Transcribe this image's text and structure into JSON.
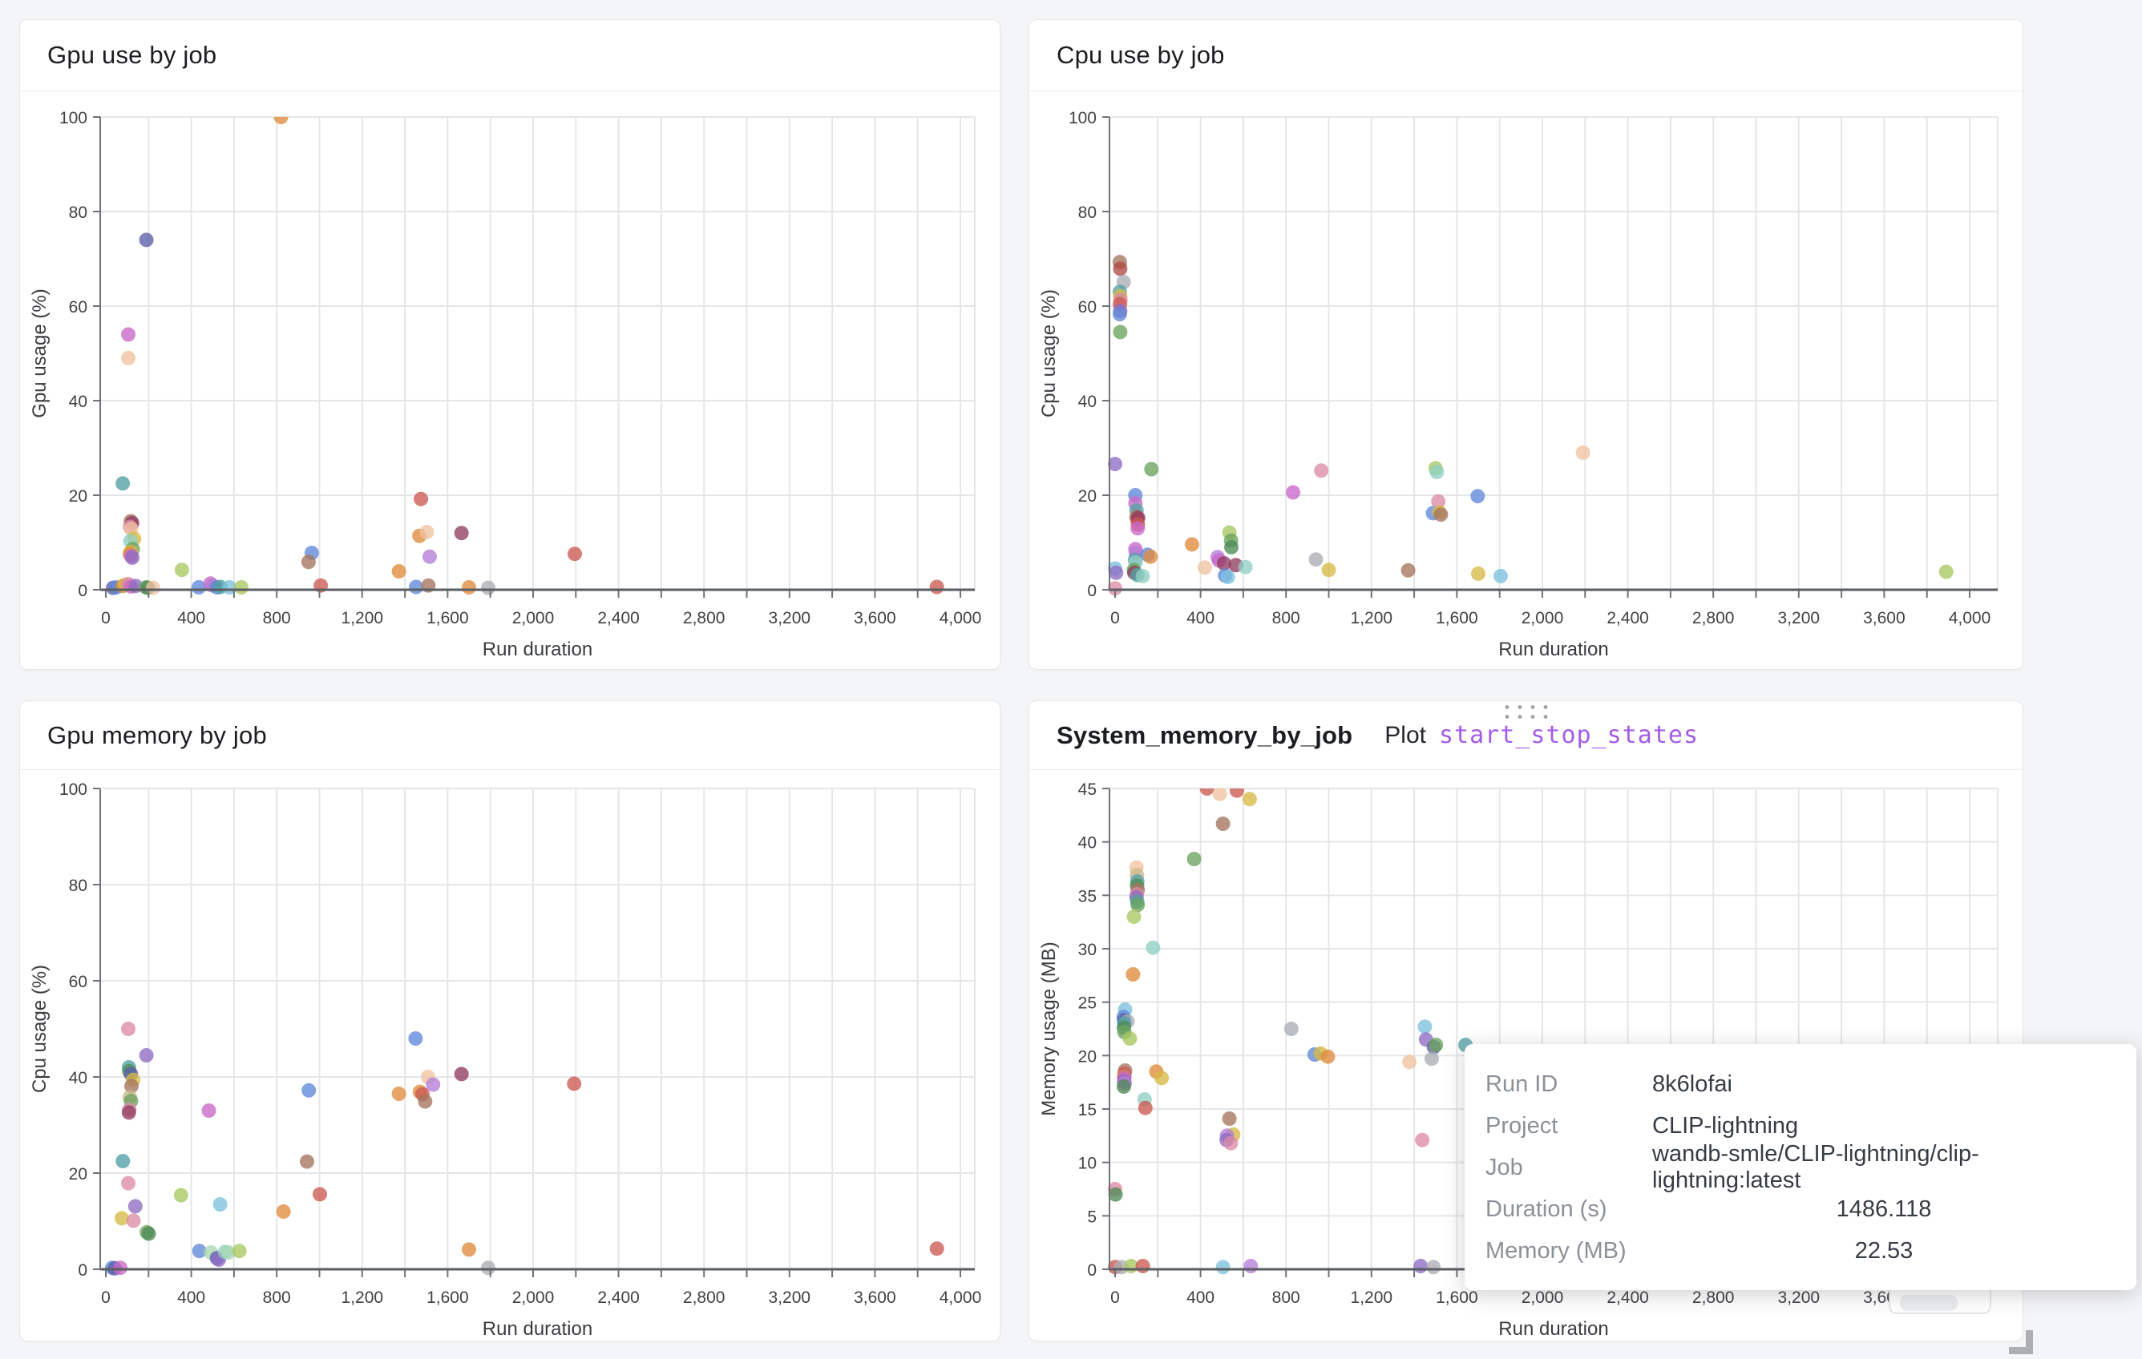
{
  "palette": {
    "blue": "#6088d8",
    "orange": "#e08a3c",
    "green": "#6aa35e",
    "forest": "#4e8a55",
    "red": "#cc5a52",
    "darkred": "#b04a45",
    "purple": "#8e6cc3",
    "violet": "#b47cd6",
    "orchid": "#c968c8",
    "pink": "#dd8aa6",
    "maroon": "#8f3c60",
    "brown": "#a5745f",
    "tan": "#c9b98c",
    "olive": "#d6b844",
    "yellowgreen": "#a8c861",
    "lightgreen": "#a9d8b2",
    "teal": "#52a0a4",
    "mint": "#8fd0c4",
    "cyan": "#7cc2de",
    "darknavy": "#5c5fa8",
    "gray": "#a9aeb5",
    "peach": "#efc3a0"
  },
  "accent": {
    "plot_link_color": "#a35ce8"
  },
  "chart_data": [
    {
      "type": "scatter",
      "title": "Gpu use by job",
      "x_axis": {
        "label": "Run duration",
        "min": 0,
        "max": 4000,
        "grid_step": 200,
        "label_step": 400
      },
      "y_axis": {
        "label": "Gpu usage (%)",
        "min": 0,
        "max": 100,
        "step": 20
      },
      "points": [
        [
          820,
          100,
          "orange"
        ],
        [
          190,
          74,
          "darknavy"
        ],
        [
          105,
          54,
          "orchid"
        ],
        [
          105,
          49,
          "peach"
        ],
        [
          79,
          22.5,
          "teal"
        ],
        [
          117,
          14.5,
          "brown"
        ],
        [
          123,
          14.1,
          "maroon"
        ],
        [
          113,
          13.3,
          "pink"
        ],
        [
          118,
          12.9,
          "peach"
        ],
        [
          133,
          10.8,
          "olive"
        ],
        [
          115,
          10.3,
          "mint"
        ],
        [
          126,
          8.6,
          "green"
        ],
        [
          116,
          8,
          "olive"
        ],
        [
          112,
          7.6,
          "orange"
        ],
        [
          119,
          7.1,
          "orchid"
        ],
        [
          124,
          6.8,
          "purple"
        ],
        [
          356,
          4.2,
          "yellowgreen"
        ],
        [
          964,
          7.8,
          "blue"
        ],
        [
          949,
          5.9,
          "brown"
        ],
        [
          1006,
          0.9,
          "red"
        ],
        [
          1475,
          19.2,
          "red"
        ],
        [
          1468,
          11.4,
          "orange"
        ],
        [
          1503,
          12.2,
          "peach"
        ],
        [
          1516,
          7,
          "violet"
        ],
        [
          1665,
          12,
          "maroon"
        ],
        [
          1372,
          3.9,
          "orange"
        ],
        [
          2195,
          7.6,
          "red"
        ],
        [
          34,
          0.4,
          "darknavy"
        ],
        [
          48,
          0.5,
          "blue"
        ],
        [
          79,
          0.8,
          "orange"
        ],
        [
          88,
          1,
          "olive"
        ],
        [
          105,
          1.2,
          "pink"
        ],
        [
          118,
          0.7,
          "orchid"
        ],
        [
          140,
          0.8,
          "purple"
        ],
        [
          188,
          0.5,
          "green"
        ],
        [
          197,
          0.4,
          "forest"
        ],
        [
          221,
          0.4,
          "peach"
        ],
        [
          435,
          0.5,
          "blue"
        ],
        [
          490,
          1.3,
          "orchid"
        ],
        [
          500,
          0.9,
          "violet"
        ],
        [
          521,
          0.5,
          "blue"
        ],
        [
          536,
          0.6,
          "teal"
        ],
        [
          578,
          0.5,
          "cyan"
        ],
        [
          634,
          0.5,
          "yellowgreen"
        ],
        [
          1452,
          0.6,
          "blue"
        ],
        [
          1510,
          0.9,
          "brown"
        ],
        [
          1700,
          0.5,
          "orange"
        ],
        [
          1790,
          0.4,
          "gray"
        ],
        [
          3890,
          0.6,
          "red"
        ]
      ]
    },
    {
      "type": "scatter",
      "title": "Cpu use by job",
      "x_axis": {
        "label": "Run duration",
        "min": 0,
        "max": 4000,
        "grid_step": 200,
        "label_step": 400
      },
      "y_axis": {
        "label": "Cpu usage (%)",
        "min": 0,
        "max": 100,
        "step": 20
      },
      "points": [
        [
          22,
          69.3,
          "brown"
        ],
        [
          24,
          67.9,
          "darkred"
        ],
        [
          40,
          65.1,
          "gray"
        ],
        [
          22,
          63,
          "teal"
        ],
        [
          24,
          62.1,
          "olive"
        ],
        [
          25,
          61.3,
          "pink"
        ],
        [
          23,
          60.4,
          "red"
        ],
        [
          24,
          59,
          "purple"
        ],
        [
          22,
          58.3,
          "blue"
        ],
        [
          24,
          54.5,
          "green"
        ],
        [
          0,
          26.6,
          "purple"
        ],
        [
          170,
          25.5,
          "green"
        ],
        [
          965,
          25.2,
          "pink"
        ],
        [
          1500,
          25.7,
          "yellowgreen"
        ],
        [
          1506,
          24.9,
          "mint"
        ],
        [
          2190,
          29,
          "peach"
        ],
        [
          833,
          20.6,
          "orchid"
        ],
        [
          95,
          20,
          "blue"
        ],
        [
          95,
          18.3,
          "orchid"
        ],
        [
          1513,
          18.7,
          "pink"
        ],
        [
          1697,
          19.8,
          "blue"
        ],
        [
          100,
          16.8,
          "teal"
        ],
        [
          1488,
          16.2,
          "blue"
        ],
        [
          1518,
          16.4,
          "olive"
        ],
        [
          1525,
          15.9,
          "brown"
        ],
        [
          100,
          15.4,
          "brown"
        ],
        [
          104,
          14.9,
          "red"
        ],
        [
          108,
          15.2,
          "maroon"
        ],
        [
          107,
          13.8,
          "red"
        ],
        [
          106,
          13,
          "orchid"
        ],
        [
          535,
          12.1,
          "yellowgreen"
        ],
        [
          543,
          10.4,
          "green"
        ],
        [
          360,
          9.6,
          "orange"
        ],
        [
          544,
          9,
          "forest"
        ],
        [
          95,
          8.6,
          "orchid"
        ],
        [
          97,
          7.8,
          "violet"
        ],
        [
          152,
          7.4,
          "blue"
        ],
        [
          166,
          7,
          "orange"
        ],
        [
          480,
          6.9,
          "violet"
        ],
        [
          486,
          6.2,
          "orchid"
        ],
        [
          93,
          6.3,
          "teal"
        ],
        [
          96,
          5.8,
          "mint"
        ],
        [
          510,
          5.6,
          "maroon"
        ],
        [
          565,
          5.2,
          "maroon"
        ],
        [
          940,
          6.4,
          "gray"
        ],
        [
          0,
          4.5,
          "cyan"
        ],
        [
          5,
          3.6,
          "purple"
        ],
        [
          420,
          4.7,
          "peach"
        ],
        [
          610,
          4.8,
          "mint"
        ],
        [
          88,
          4.2,
          "green"
        ],
        [
          90,
          3.6,
          "maroon"
        ],
        [
          105,
          3.1,
          "teal"
        ],
        [
          130,
          2.9,
          "mint"
        ],
        [
          515,
          3,
          "blue"
        ],
        [
          528,
          2.7,
          "cyan"
        ],
        [
          1000,
          4.2,
          "olive"
        ],
        [
          1372,
          4.1,
          "brown"
        ],
        [
          1700,
          3.4,
          "olive"
        ],
        [
          1805,
          2.9,
          "cyan"
        ],
        [
          3890,
          3.8,
          "yellowgreen"
        ],
        [
          0,
          0.3,
          "pink"
        ]
      ]
    },
    {
      "type": "scatter",
      "title": "Gpu memory by job",
      "x_axis": {
        "label": "Run duration",
        "min": 0,
        "max": 4000,
        "grid_step": 200,
        "label_step": 400
      },
      "y_axis": {
        "label": "Cpu usage (%)",
        "min": 0,
        "max": 100,
        "step": 20
      },
      "points": [
        [
          105,
          50,
          "pink"
        ],
        [
          1450,
          48,
          "blue"
        ],
        [
          190,
          44.5,
          "purple"
        ],
        [
          108,
          42,
          "teal"
        ],
        [
          110,
          41.2,
          "forest"
        ],
        [
          118,
          40.6,
          "darknavy"
        ],
        [
          128,
          39.4,
          "olive"
        ],
        [
          120,
          38.1,
          "brown"
        ],
        [
          112,
          35.8,
          "tan"
        ],
        [
          118,
          35,
          "green"
        ],
        [
          110,
          33.2,
          "pink"
        ],
        [
          108,
          32.6,
          "maroon"
        ],
        [
          482,
          33,
          "orchid"
        ],
        [
          950,
          37.2,
          "blue"
        ],
        [
          1372,
          36.5,
          "orange"
        ],
        [
          1470,
          36.9,
          "orange"
        ],
        [
          1482,
          36.4,
          "red"
        ],
        [
          1495,
          34.9,
          "brown"
        ],
        [
          1508,
          40,
          "peach"
        ],
        [
          1532,
          38.4,
          "violet"
        ],
        [
          1665,
          40.6,
          "maroon"
        ],
        [
          2192,
          38.6,
          "red"
        ],
        [
          80,
          22.5,
          "teal"
        ],
        [
          942,
          22.4,
          "brown"
        ],
        [
          105,
          17.9,
          "pink"
        ],
        [
          352,
          15.4,
          "yellowgreen"
        ],
        [
          1002,
          15.6,
          "red"
        ],
        [
          535,
          13.5,
          "cyan"
        ],
        [
          138,
          13.1,
          "purple"
        ],
        [
          832,
          12,
          "orange"
        ],
        [
          75,
          10.6,
          "olive"
        ],
        [
          130,
          10.1,
          "pink"
        ],
        [
          192,
          7.7,
          "green"
        ],
        [
          201,
          7.4,
          "forest"
        ],
        [
          438,
          3.8,
          "blue"
        ],
        [
          492,
          3.5,
          "lightgreen"
        ],
        [
          520,
          2.3,
          "darknavy"
        ],
        [
          529,
          2,
          "purple"
        ],
        [
          558,
          3.6,
          "mint"
        ],
        [
          573,
          3.5,
          "lightgreen"
        ],
        [
          625,
          3.8,
          "yellowgreen"
        ],
        [
          1700,
          4.1,
          "orange"
        ],
        [
          3890,
          4.3,
          "red"
        ],
        [
          1790,
          0.3,
          "gray"
        ],
        [
          30,
          0.3,
          "blue"
        ],
        [
          42,
          0.2,
          "darknavy"
        ],
        [
          68,
          0.3,
          "orchid"
        ]
      ]
    },
    {
      "type": "scatter",
      "title": "System_memory_by_job",
      "plot_label": "Plot",
      "plot_link": "start_stop_states",
      "x_axis": {
        "label": "Run duration",
        "min": 0,
        "max": 4000,
        "grid_step": 200,
        "label_step": 400
      },
      "y_axis": {
        "label": "Memory usage (MB)",
        "min": 0,
        "max": 45,
        "step": 5
      },
      "points": [
        [
          430,
          45,
          "red"
        ],
        [
          490,
          44.5,
          "peach"
        ],
        [
          570,
          44.8,
          "red"
        ],
        [
          630,
          44,
          "olive"
        ],
        [
          505,
          41.7,
          "brown"
        ],
        [
          370,
          38.4,
          "green"
        ],
        [
          100,
          37.6,
          "peach"
        ],
        [
          102,
          36.9,
          "tan"
        ],
        [
          104,
          36.3,
          "teal"
        ],
        [
          103,
          35.9,
          "forest"
        ],
        [
          106,
          35.5,
          "brown"
        ],
        [
          102,
          35.1,
          "pink"
        ],
        [
          100,
          34.8,
          "purple"
        ],
        [
          104,
          34.4,
          "teal"
        ],
        [
          106,
          34.1,
          "green"
        ],
        [
          88,
          33,
          "yellowgreen"
        ],
        [
          178,
          30.1,
          "mint"
        ],
        [
          84,
          27.6,
          "orange"
        ],
        [
          47,
          24.3,
          "cyan"
        ],
        [
          40,
          23.6,
          "blue"
        ],
        [
          42,
          23.3,
          "darknavy"
        ],
        [
          58,
          23.2,
          "gray"
        ],
        [
          43,
          23,
          "teal"
        ],
        [
          41,
          22.6,
          "forest"
        ],
        [
          44,
          22.2,
          "green"
        ],
        [
          69,
          21.6,
          "yellowgreen"
        ],
        [
          825,
          22.5,
          "gray"
        ],
        [
          1450,
          22.7,
          "cyan"
        ],
        [
          1455,
          21.5,
          "purple"
        ],
        [
          1492,
          20.8,
          "darknavy"
        ],
        [
          1502,
          21,
          "green"
        ],
        [
          1640,
          21,
          "teal"
        ],
        [
          934,
          20.1,
          "blue"
        ],
        [
          962,
          20.2,
          "olive"
        ],
        [
          996,
          19.9,
          "orange"
        ],
        [
          1378,
          19.4,
          "peach"
        ],
        [
          1482,
          19.7,
          "gray"
        ],
        [
          47,
          18.6,
          "brown"
        ],
        [
          44,
          18.3,
          "red"
        ],
        [
          42,
          18,
          "orange"
        ],
        [
          44,
          17.9,
          "orchid"
        ],
        [
          42,
          17.6,
          "purple"
        ],
        [
          45,
          17.4,
          "violet"
        ],
        [
          41,
          17.1,
          "forest"
        ],
        [
          193,
          18.5,
          "orange"
        ],
        [
          218,
          17.9,
          "olive"
        ],
        [
          138,
          15.9,
          "mint"
        ],
        [
          142,
          15.1,
          "red"
        ],
        [
          535,
          14.1,
          "brown"
        ],
        [
          553,
          12.6,
          "olive"
        ],
        [
          524,
          12.5,
          "violet"
        ],
        [
          522,
          12.1,
          "purple"
        ],
        [
          542,
          11.8,
          "pink"
        ],
        [
          1438,
          12.1,
          "pink"
        ],
        [
          0,
          7.5,
          "pink"
        ],
        [
          2,
          7,
          "forest"
        ],
        [
          0,
          0.2,
          "red"
        ],
        [
          30,
          0.2,
          "gray"
        ],
        [
          75,
          0.3,
          "yellowgreen"
        ],
        [
          130,
          0.3,
          "red"
        ],
        [
          505,
          0.2,
          "cyan"
        ],
        [
          635,
          0.3,
          "violet"
        ],
        [
          1430,
          0.3,
          "purple"
        ],
        [
          1490,
          0.2,
          "gray"
        ]
      ]
    }
  ],
  "tooltip": {
    "rows": [
      {
        "label": "Run ID",
        "value": "8k6lofai",
        "align": "left"
      },
      {
        "label": "Project",
        "value": "CLIP-lightning",
        "align": "left"
      },
      {
        "label": "Job",
        "value": "wandb-smle/CLIP-lightning/clip-lightning:latest",
        "align": "left"
      },
      {
        "label": "Duration (s)",
        "value": "1486.118",
        "align": "center"
      },
      {
        "label": "Memory (MB)",
        "value": "22.53",
        "align": "center"
      }
    ]
  }
}
